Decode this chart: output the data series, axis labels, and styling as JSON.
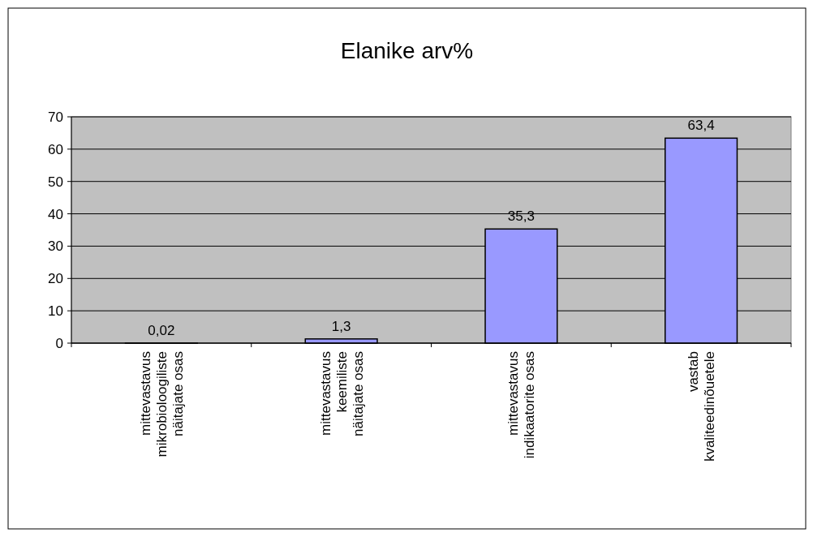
{
  "chart_data": {
    "type": "bar",
    "title": "Elanike arv%",
    "categories": [
      "mittevastavus\nmikrobioloogiliste\nnäitajate osas",
      "mittevastavus\nkeemiliste\nnäitajate osas",
      "mittevastavus\nindikaatorite osas",
      "vastab\nkvaliteedinõuetele"
    ],
    "values": [
      0.02,
      1.3,
      35.3,
      63.4
    ],
    "value_labels": [
      "0,02",
      "1,3",
      "35,3",
      "63,4"
    ],
    "color": "#9999ff",
    "ylim": [
      0,
      70
    ],
    "yticks": [
      0,
      10,
      20,
      30,
      40,
      50,
      60,
      70
    ],
    "grid": "y"
  }
}
